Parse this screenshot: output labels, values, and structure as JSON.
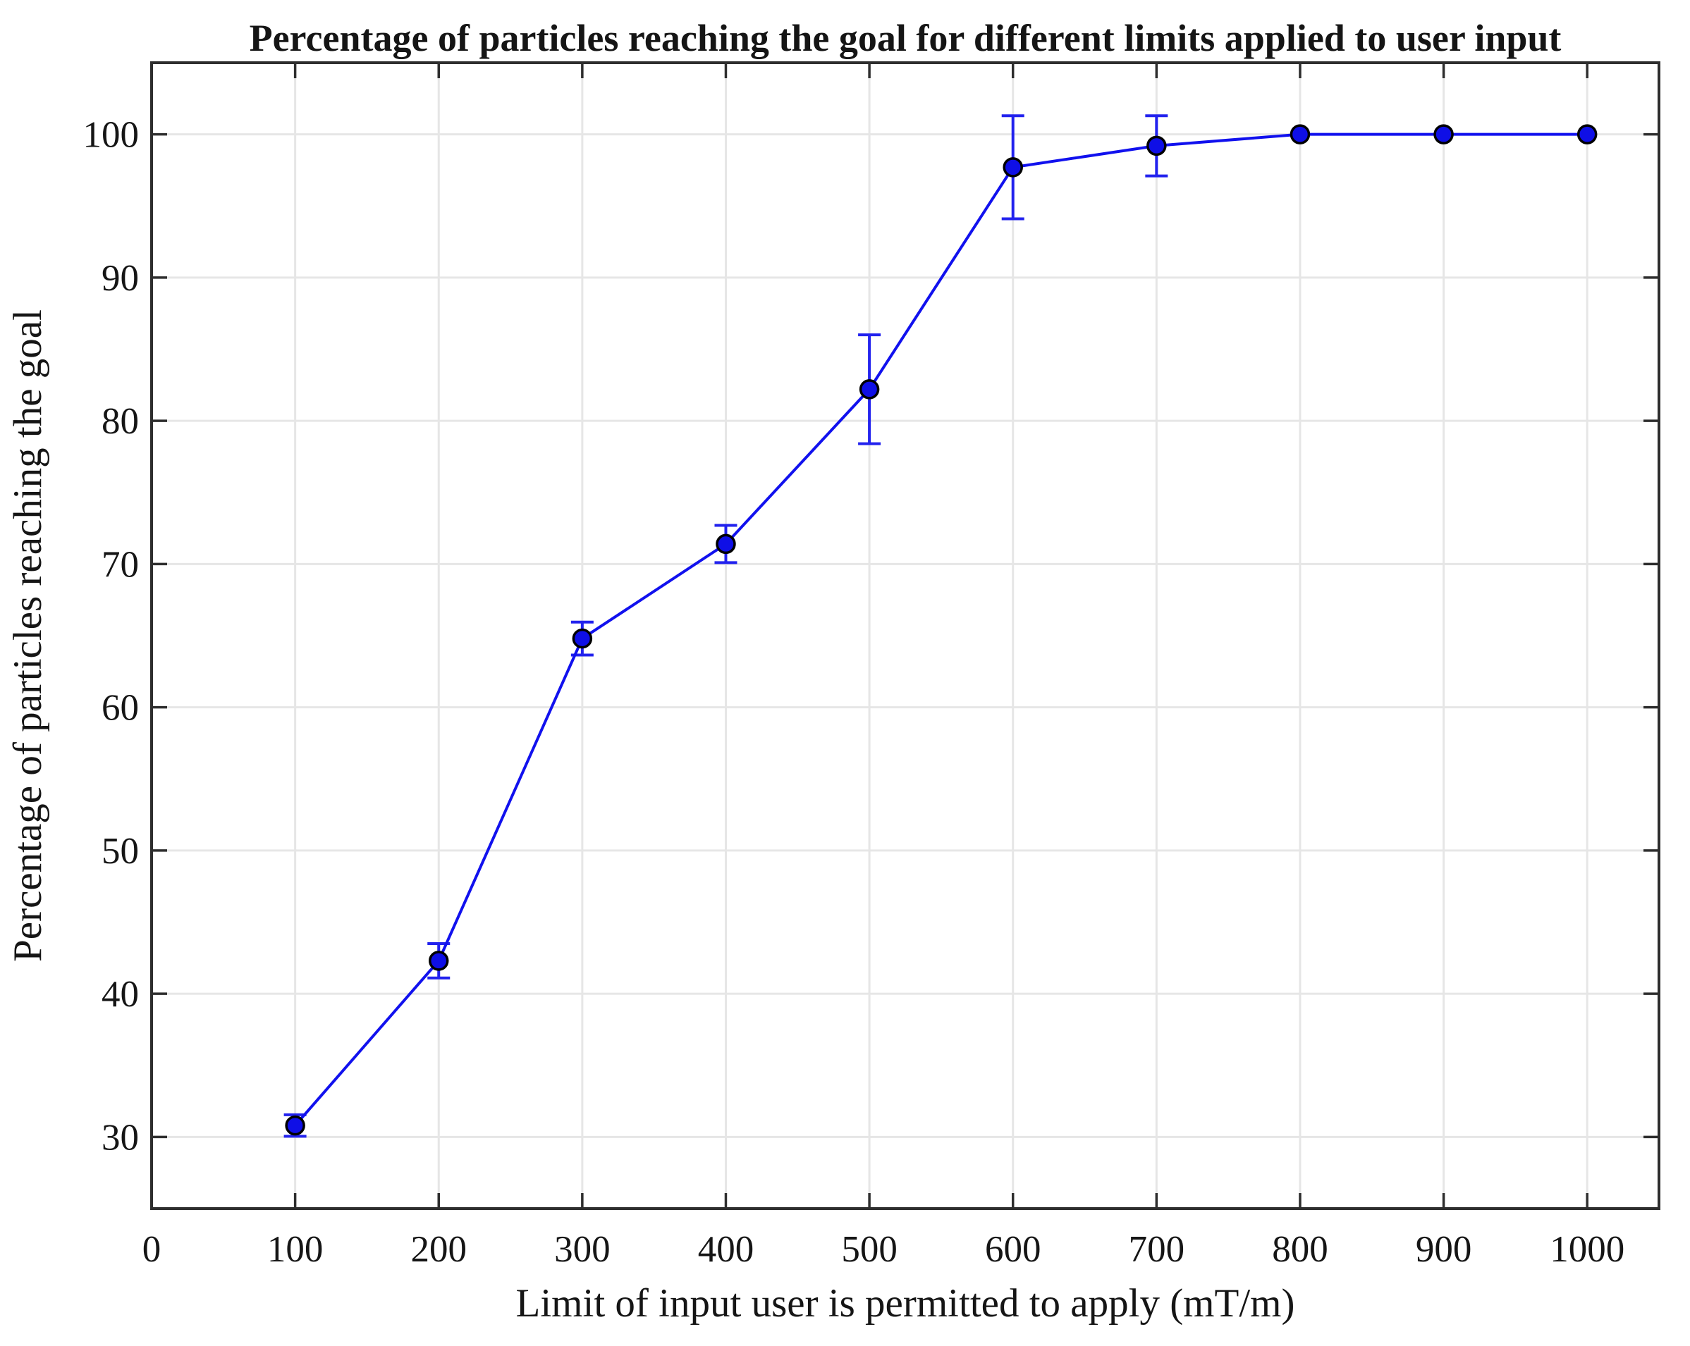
{
  "figure": {
    "background": "#FFFFFF"
  },
  "chart_data": {
    "type": "line",
    "title": "Percentage of particles reaching the goal for different limits applied to user input",
    "xlabel": "Limit of input user is permitted to apply (mT/m)",
    "ylabel": "Percentage of particles reaching the goal",
    "x": [
      100,
      200,
      300,
      400,
      500,
      600,
      700,
      800,
      900,
      1000
    ],
    "series": [
      {
        "name": "percentage-reaching-goal",
        "values": [
          30.8,
          42.3,
          64.8,
          71.4,
          82.2,
          97.7,
          99.2,
          100,
          100,
          100
        ],
        "yerr": [
          0.75,
          1.2,
          1.15,
          1.3,
          3.8,
          3.6,
          2.1,
          0,
          0,
          0
        ]
      }
    ],
    "xlim": [
      0,
      1050
    ],
    "ylim": [
      25,
      105
    ],
    "xticks": [
      0,
      100,
      200,
      300,
      400,
      500,
      600,
      700,
      800,
      900,
      1000
    ],
    "yticks": [
      30,
      40,
      50,
      60,
      70,
      80,
      90,
      100
    ],
    "grid": true,
    "legend_position": "none",
    "colors": {
      "line": "#1111EE",
      "marker_fill": "#0F0FE6",
      "marker_edge": "#000000",
      "error_bar": "#2222EE",
      "grid": "#E6E6E6",
      "axis": "#2E2E2E",
      "text": "#151515"
    }
  }
}
